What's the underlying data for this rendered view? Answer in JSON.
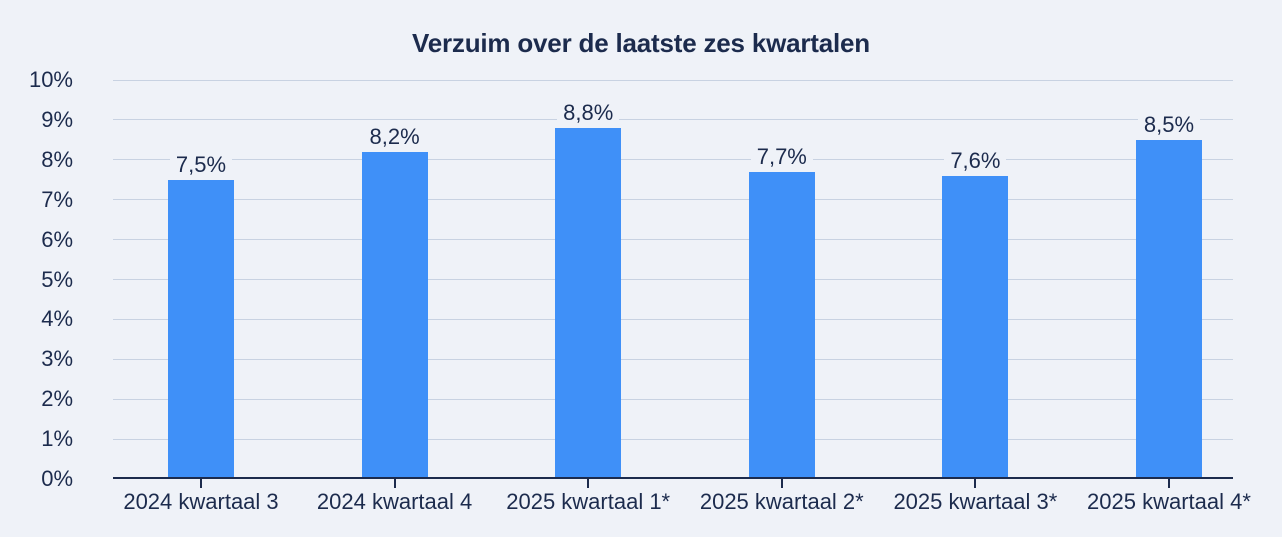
{
  "chart_data": {
    "type": "bar",
    "title": "Verzuim over de laatste zes kwartalen",
    "categories": [
      "2024 kwartaal 3",
      "2024 kwartaal 4",
      "2025 kwartaal 1*",
      "2025 kwartaal 2*",
      "2025 kwartaal 3*",
      "2025 kwartaal 4*"
    ],
    "values": [
      7.5,
      8.2,
      8.8,
      7.7,
      7.6,
      8.5
    ],
    "value_labels": [
      "7,5%",
      "8,2%",
      "8,8%",
      "7,7%",
      "7,6%",
      "8,5%"
    ],
    "ylabel": "",
    "xlabel": "",
    "ylim": [
      0,
      10
    ],
    "ytick_step": 1,
    "ytick_labels": [
      "0%",
      "1%",
      "2%",
      "3%",
      "4%",
      "5%",
      "6%",
      "7%",
      "8%",
      "9%",
      "10%"
    ],
    "grid": true,
    "legend": false,
    "colors": {
      "bar": "#3F90F8",
      "grid": "#C8D2E2",
      "text": "#1C2B4D",
      "background": "#EFF2F8"
    }
  }
}
